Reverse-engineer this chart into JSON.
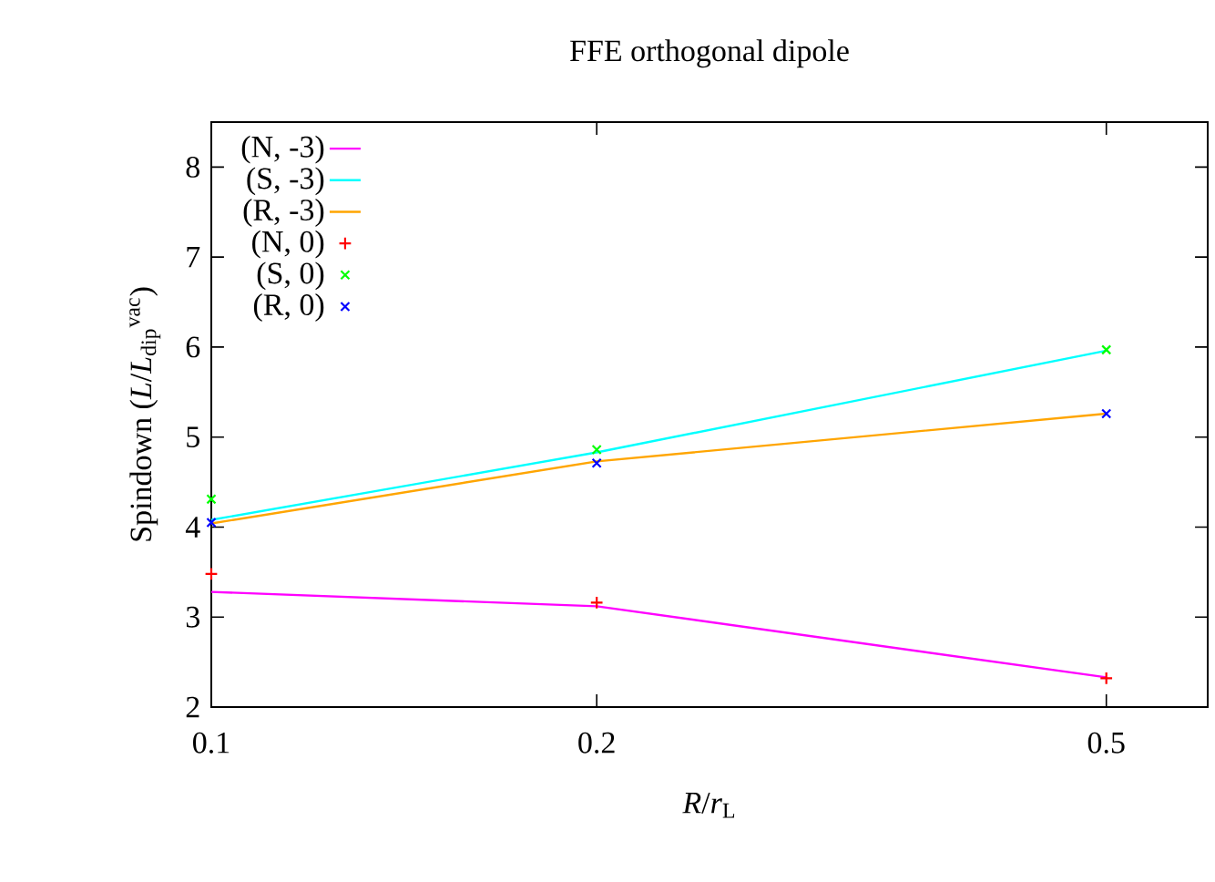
{
  "chart_data": {
    "type": "line",
    "title": "FFE orthogonal dipole",
    "xlabel": "*R*/*r*$_{L}$",
    "ylabel": "Spindown (*L*/*L*$_{dip}$$^{vac}$)",
    "log": "x",
    "xlim": [
      0.1,
      0.6
    ],
    "xticks": [
      0.1,
      0.2,
      0.5
    ],
    "ylim": [
      2,
      8.5
    ],
    "yticks": [
      2,
      3,
      4,
      5,
      6,
      7,
      8
    ],
    "legend": "top left",
    "x": [
      0.1,
      0.2,
      0.5
    ],
    "series": [
      {
        "name": "(N, -3)",
        "type": "line",
        "color": "#ff00ff",
        "values": [
          3.28,
          3.12,
          2.33
        ]
      },
      {
        "name": "(S, -3)",
        "type": "line",
        "color": "#00ffff",
        "values": [
          4.08,
          4.83,
          5.96
        ]
      },
      {
        "name": "(R, -3)",
        "type": "line",
        "color": "#ffa500",
        "values": [
          4.04,
          4.73,
          5.26
        ]
      },
      {
        "name": "(N, 0)",
        "type": "scatter",
        "marker": "plus",
        "color": "#ff0000",
        "values": [
          3.48,
          3.16,
          2.32
        ]
      },
      {
        "name": "(S, 0)",
        "type": "scatter",
        "marker": "cross",
        "color": "#00ff00",
        "values": [
          4.31,
          4.86,
          5.97
        ]
      },
      {
        "name": "(R, 0)",
        "type": "scatter",
        "marker": "cross",
        "color": "#0000ff",
        "values": [
          4.05,
          4.71,
          5.26
        ]
      }
    ]
  }
}
